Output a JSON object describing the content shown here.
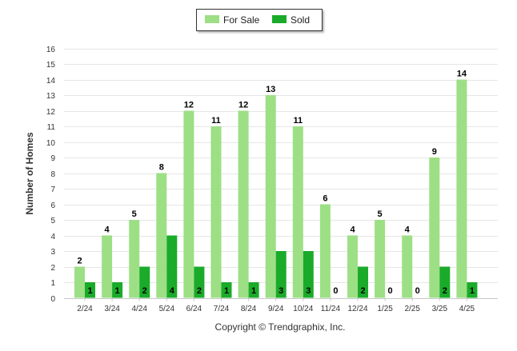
{
  "chart_data": {
    "type": "bar",
    "title": "",
    "xlabel": "",
    "ylabel": "Number of Homes",
    "ylim": [
      0,
      16
    ],
    "y_ticks": [
      0,
      1,
      2,
      3,
      4,
      5,
      6,
      7,
      8,
      9,
      10,
      11,
      12,
      13,
      14,
      15,
      16
    ],
    "grid": true,
    "legend_position": "top-center",
    "categories": [
      "2/24",
      "3/24",
      "4/24",
      "5/24",
      "6/24",
      "7/24",
      "8/24",
      "9/24",
      "10/24",
      "11/24",
      "12/24",
      "1/25",
      "2/25",
      "3/25",
      "4/25"
    ],
    "series": [
      {
        "name": "For Sale",
        "color": "#9ddf85",
        "values": [
          2,
          4,
          5,
          8,
          12,
          11,
          12,
          13,
          11,
          6,
          4,
          5,
          4,
          9,
          14
        ]
      },
      {
        "name": "Sold",
        "color": "#1aab2a",
        "values": [
          1,
          1,
          2,
          4,
          2,
          1,
          1,
          3,
          3,
          0,
          2,
          0,
          0,
          2,
          1
        ]
      }
    ]
  },
  "footer": {
    "copyright": "Copyright © Trendgraphix, Inc."
  }
}
